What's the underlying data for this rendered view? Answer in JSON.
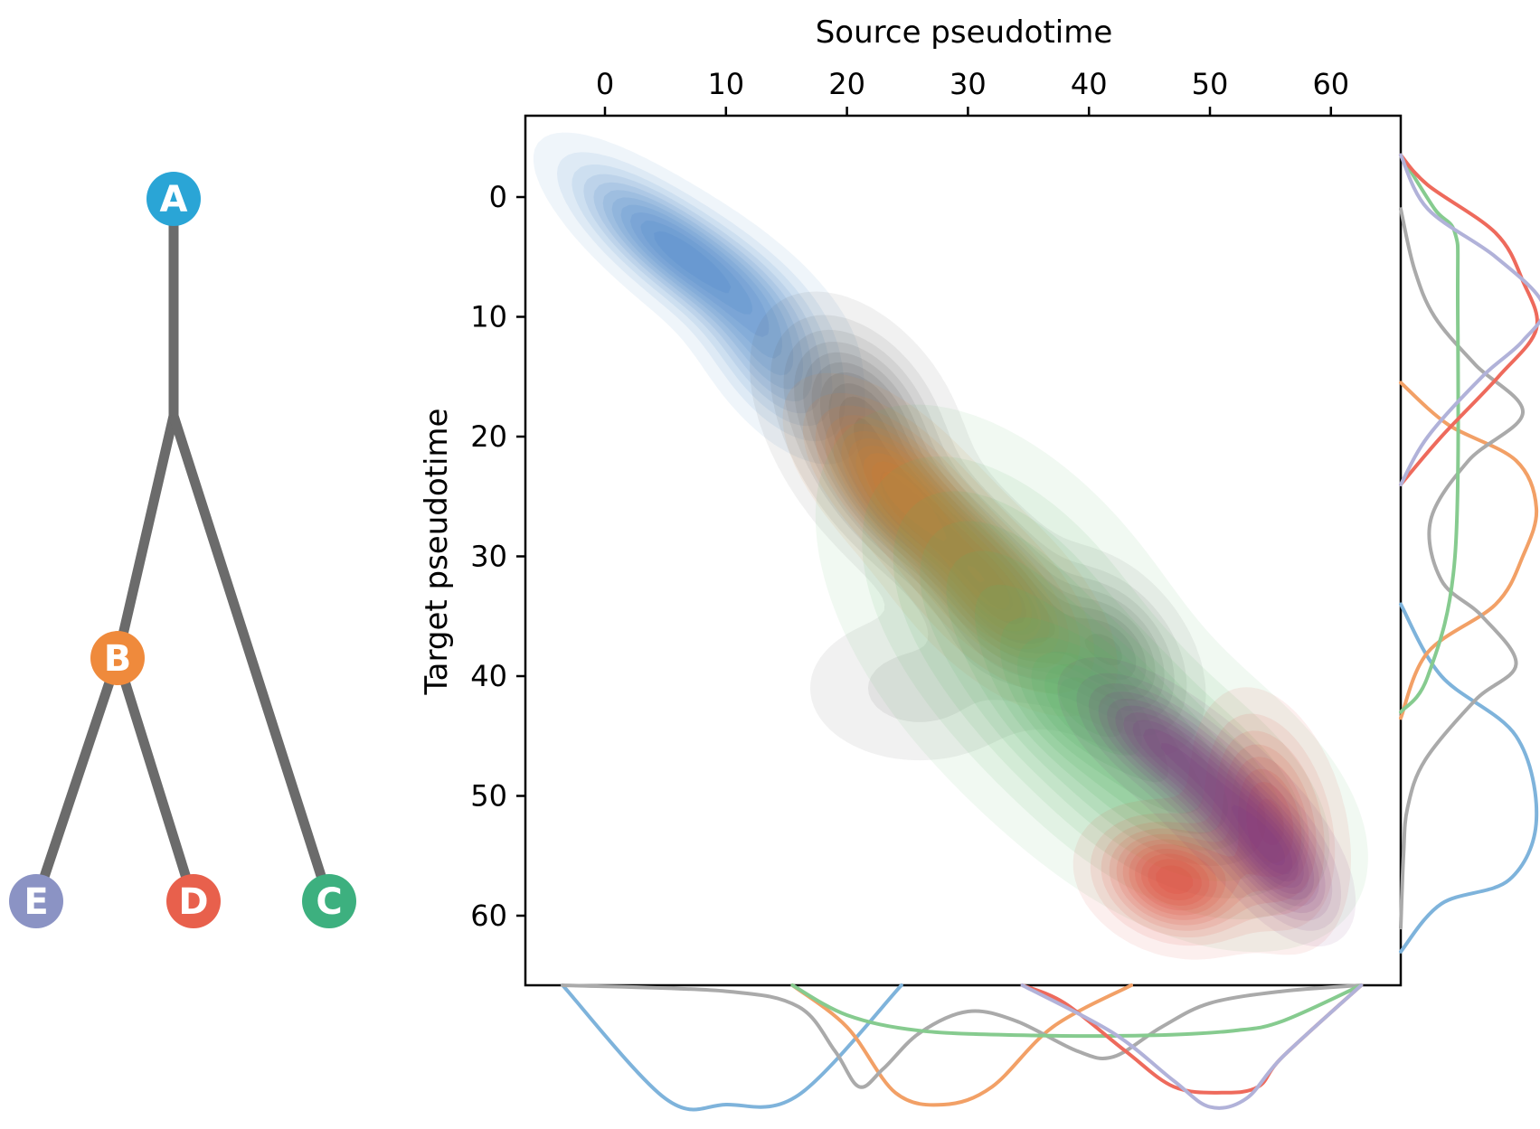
{
  "chart_data": [
    {
      "type": "tree",
      "nodes": [
        {
          "id": "A",
          "label": "A",
          "color": "#2aa5d6",
          "parent": null
        },
        {
          "id": "B",
          "label": "B",
          "color": "#ef8a3c",
          "parent": "A"
        },
        {
          "id": "C",
          "label": "C",
          "color": "#3db07f",
          "parent": "A"
        },
        {
          "id": "D",
          "label": "D",
          "color": "#e8604c",
          "parent": "B"
        },
        {
          "id": "E",
          "label": "E",
          "color": "#8b93c4",
          "parent": "B"
        }
      ],
      "edge_color": "#6b6b6b"
    },
    {
      "type": "density_contour",
      "xlabel": "Source pseudotime",
      "ylabel": "Target pseudotime",
      "xlim": [
        -6.5,
        66
      ],
      "ylim": [
        66,
        -7
      ],
      "xticks": [
        0,
        10,
        20,
        30,
        40,
        50,
        60
      ],
      "yticks": [
        0,
        10,
        20,
        30,
        40,
        50,
        60
      ],
      "series": [
        {
          "color": "#4b86c8",
          "blobs": [
            {
              "cx": 4,
              "cy": 3,
              "sx": 4.5,
              "sy": 3.8,
              "rho": 0.75,
              "w": 1.0
            },
            {
              "cx": 10,
              "cy": 7,
              "sx": 5.0,
              "sy": 4.0,
              "rho": 0.7,
              "w": 0.85
            },
            {
              "cx": 14,
              "cy": 14,
              "sx": 3.5,
              "sy": 4.0,
              "rho": 0.6,
              "w": 0.8
            }
          ]
        },
        {
          "color": "#5a5a5a",
          "blobs": [
            {
              "cx": 21,
              "cy": 18,
              "sx": 4.0,
              "sy": 4.5,
              "rho": 0.4,
              "w": 0.8
            },
            {
              "cx": 26,
              "cy": 27,
              "sx": 4.5,
              "sy": 4.0,
              "rho": 0.6,
              "w": 0.9
            },
            {
              "cx": 33,
              "cy": 34,
              "sx": 3.5,
              "sy": 4.0,
              "rho": 0.5,
              "w": 0.8
            },
            {
              "cx": 42,
              "cy": 38,
              "sx": 3.5,
              "sy": 4.0,
              "rho": 0.4,
              "w": 0.7
            },
            {
              "cx": 26,
              "cy": 41,
              "sx": 6.0,
              "sy": 4.0,
              "rho": 0.0,
              "w": 0.2
            }
          ]
        },
        {
          "color": "#e27a2c",
          "blobs": [
            {
              "cx": 24,
              "cy": 24,
              "sx": 4.0,
              "sy": 4.0,
              "rho": 0.6,
              "w": 1.0
            },
            {
              "cx": 32,
              "cy": 33,
              "sx": 4.5,
              "sy": 4.5,
              "rho": 0.6,
              "w": 0.95
            }
          ]
        },
        {
          "color": "#5ab468",
          "blobs": [
            {
              "cx": 34,
              "cy": 36,
              "sx": 8.0,
              "sy": 9.0,
              "rho": 0.5,
              "w": 0.6
            },
            {
              "cx": 48,
              "cy": 50,
              "sx": 7.0,
              "sy": 6.0,
              "rho": 0.4,
              "w": 0.7
            },
            {
              "cx": 40,
              "cy": 42,
              "sx": 4.0,
              "sy": 3.5,
              "rho": 0.3,
              "w": 0.5
            }
          ]
        },
        {
          "color": "#e24a3a",
          "blobs": [
            {
              "cx": 47,
              "cy": 57,
              "sx": 3.5,
              "sy": 2.8,
              "rho": 0.2,
              "w": 1.0
            },
            {
              "cx": 55,
              "cy": 52,
              "sx": 3.0,
              "sy": 5.0,
              "rho": 0.3,
              "w": 0.7
            }
          ]
        },
        {
          "color": "#7e3a82",
          "blobs": [
            {
              "cx": 45,
              "cy": 45,
              "sx": 3.5,
              "sy": 3.0,
              "rho": 0.6,
              "w": 0.8
            },
            {
              "cx": 52,
              "cy": 51,
              "sx": 4.0,
              "sy": 4.0,
              "rho": 0.7,
              "w": 1.0
            },
            {
              "cx": 56,
              "cy": 56,
              "sx": 2.5,
              "sy": 3.0,
              "rho": 0.5,
              "w": 0.7
            }
          ]
        }
      ]
    },
    {
      "type": "line",
      "orientation": "horizontal",
      "axis": "Source pseudotime",
      "series": [
        {
          "color": "#7eb3db",
          "x": [
            -3.5,
            5,
            10,
            16,
            24.5
          ],
          "y": [
            0,
            0.95,
            1.0,
            0.92,
            0
          ]
        },
        {
          "color": "#f2a066",
          "x": [
            15.5,
            20,
            24,
            28,
            32,
            37,
            43.5
          ],
          "y": [
            0,
            0.35,
            0.9,
            1.0,
            0.85,
            0.35,
            0
          ]
        },
        {
          "color": "#aaaaaa",
          "x": [
            -3.5,
            10,
            16,
            19,
            21,
            23,
            26,
            30,
            34,
            39,
            42,
            46,
            50,
            56,
            62.5
          ],
          "y": [
            0,
            0.05,
            0.18,
            0.55,
            0.85,
            0.7,
            0.4,
            0.22,
            0.3,
            0.55,
            0.6,
            0.35,
            0.15,
            0.05,
            0
          ]
        },
        {
          "color": "#86cb8f",
          "x": [
            15.5,
            20,
            26,
            35,
            45,
            52,
            56,
            62.5
          ],
          "y": [
            0,
            0.25,
            0.38,
            0.42,
            0.42,
            0.38,
            0.3,
            0
          ]
        },
        {
          "color": "#ee6a5c",
          "x": [
            34.5,
            38,
            43,
            47,
            51,
            54,
            56,
            62.5
          ],
          "y": [
            0,
            0.15,
            0.55,
            0.85,
            0.9,
            0.85,
            0.6,
            0
          ]
        },
        {
          "color": "#b1b2d9",
          "x": [
            34.5,
            42,
            47,
            50,
            53,
            56,
            62.5
          ],
          "y": [
            0,
            0.4,
            0.8,
            1.02,
            0.95,
            0.6,
            0
          ]
        }
      ]
    },
    {
      "type": "line",
      "orientation": "vertical",
      "axis": "Target pseudotime",
      "series": [
        {
          "color": "#7eb3db",
          "y": [
            34,
            40,
            45,
            52,
            57,
            59,
            63
          ],
          "x": [
            0,
            0.3,
            0.85,
            1.0,
            0.8,
            0.3,
            0
          ]
        },
        {
          "color": "#f2a066",
          "y": [
            15.5,
            19,
            22,
            26,
            30,
            34,
            38,
            43.5
          ],
          "x": [
            0,
            0.35,
            0.85,
            1.0,
            0.9,
            0.7,
            0.2,
            0
          ]
        },
        {
          "color": "#aaaaaa",
          "y": [
            1,
            6,
            10,
            14,
            18,
            22,
            27,
            32,
            35,
            39,
            42,
            47,
            51,
            55,
            61
          ],
          "x": [
            0,
            0.1,
            0.25,
            0.55,
            0.9,
            0.5,
            0.22,
            0.3,
            0.6,
            0.85,
            0.55,
            0.18,
            0.05,
            0.02,
            0
          ]
        },
        {
          "color": "#86cb8f",
          "y": [
            -3.5,
            1,
            3,
            8,
            30,
            40,
            43
          ],
          "x": [
            0,
            0.25,
            0.4,
            0.42,
            0.4,
            0.2,
            0
          ]
        },
        {
          "color": "#ee6a5c",
          "y": [
            -3.5,
            -1,
            3,
            7,
            11,
            15,
            20,
            24
          ],
          "x": [
            0,
            0.2,
            0.7,
            0.9,
            1.0,
            0.72,
            0.3,
            0
          ]
        },
        {
          "color": "#b1b2d9",
          "y": [
            -3.5,
            1,
            5,
            9,
            12,
            15,
            20,
            24
          ],
          "x": [
            0,
            0.2,
            0.7,
            1.05,
            0.9,
            0.6,
            0.2,
            0
          ]
        }
      ]
    }
  ]
}
